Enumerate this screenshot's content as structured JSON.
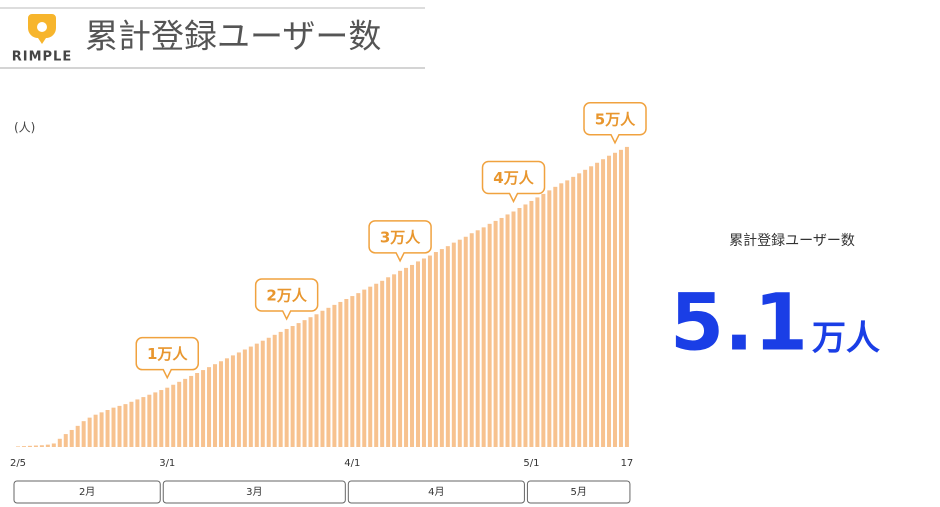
{
  "header": {
    "logo": "RIMPLE",
    "title": "累計登録ユーザー数"
  },
  "chart_data": {
    "type": "bar",
    "y_label": "(人)",
    "color": "#f7c28f",
    "categories": [
      "2/5",
      null,
      null,
      null,
      null,
      null,
      null,
      null,
      null,
      null,
      null,
      null,
      null,
      null,
      null,
      null,
      null,
      null,
      null,
      null,
      null,
      null,
      null,
      null,
      null,
      "3/1",
      null,
      null,
      null,
      null,
      null,
      null,
      null,
      null,
      null,
      null,
      null,
      null,
      null,
      null,
      null,
      null,
      null,
      null,
      null,
      null,
      null,
      null,
      null,
      null,
      null,
      null,
      null,
      null,
      null,
      null,
      "4/1",
      null,
      null,
      null,
      null,
      null,
      null,
      null,
      null,
      null,
      null,
      null,
      null,
      null,
      null,
      null,
      null,
      null,
      null,
      null,
      null,
      null,
      null,
      null,
      null,
      null,
      null,
      null,
      null,
      null,
      "5/1",
      null,
      null,
      null,
      null,
      null,
      null,
      null,
      null,
      null,
      null,
      null,
      null,
      null,
      null,
      null,
      "17"
    ],
    "values": [
      100,
      150,
      200,
      250,
      300,
      400,
      600,
      1400,
      2200,
      2900,
      3600,
      4400,
      5000,
      5500,
      5900,
      6300,
      6700,
      7000,
      7300,
      7700,
      8100,
      8500,
      8900,
      9300,
      9700,
      10100,
      10600,
      11100,
      11600,
      12100,
      12600,
      13100,
      13600,
      14100,
      14600,
      15100,
      15600,
      16100,
      16600,
      17100,
      17600,
      18100,
      18600,
      19100,
      19600,
      20100,
      20600,
      21100,
      21600,
      22100,
      22600,
      23200,
      23700,
      24200,
      24700,
      25200,
      25700,
      26200,
      26800,
      27300,
      27800,
      28300,
      28900,
      29400,
      30000,
      30500,
      31000,
      31600,
      32100,
      32600,
      33200,
      33700,
      34200,
      34800,
      35300,
      35800,
      36400,
      36900,
      37400,
      38000,
      38500,
      39000,
      39600,
      40100,
      40700,
      41300,
      41900,
      42500,
      43100,
      43700,
      44300,
      44900,
      45400,
      46000,
      46600,
      47200,
      47800,
      48400,
      49000,
      49600,
      50100,
      50600,
      51100
    ],
    "ylim": [
      0,
      55000
    ],
    "month_labels": [
      "2月",
      "3月",
      "4月",
      "5月"
    ],
    "annotations": [
      {
        "label": "1万人",
        "value": 10000
      },
      {
        "label": "2万人",
        "value": 20000
      },
      {
        "label": "3万人",
        "value": 30000
      },
      {
        "label": "4万人",
        "value": 40000
      },
      {
        "label": "5万人",
        "value": 50000
      }
    ]
  },
  "summary": {
    "label": "累計登録ユーザー数",
    "number": "5.1",
    "unit": "万人"
  }
}
